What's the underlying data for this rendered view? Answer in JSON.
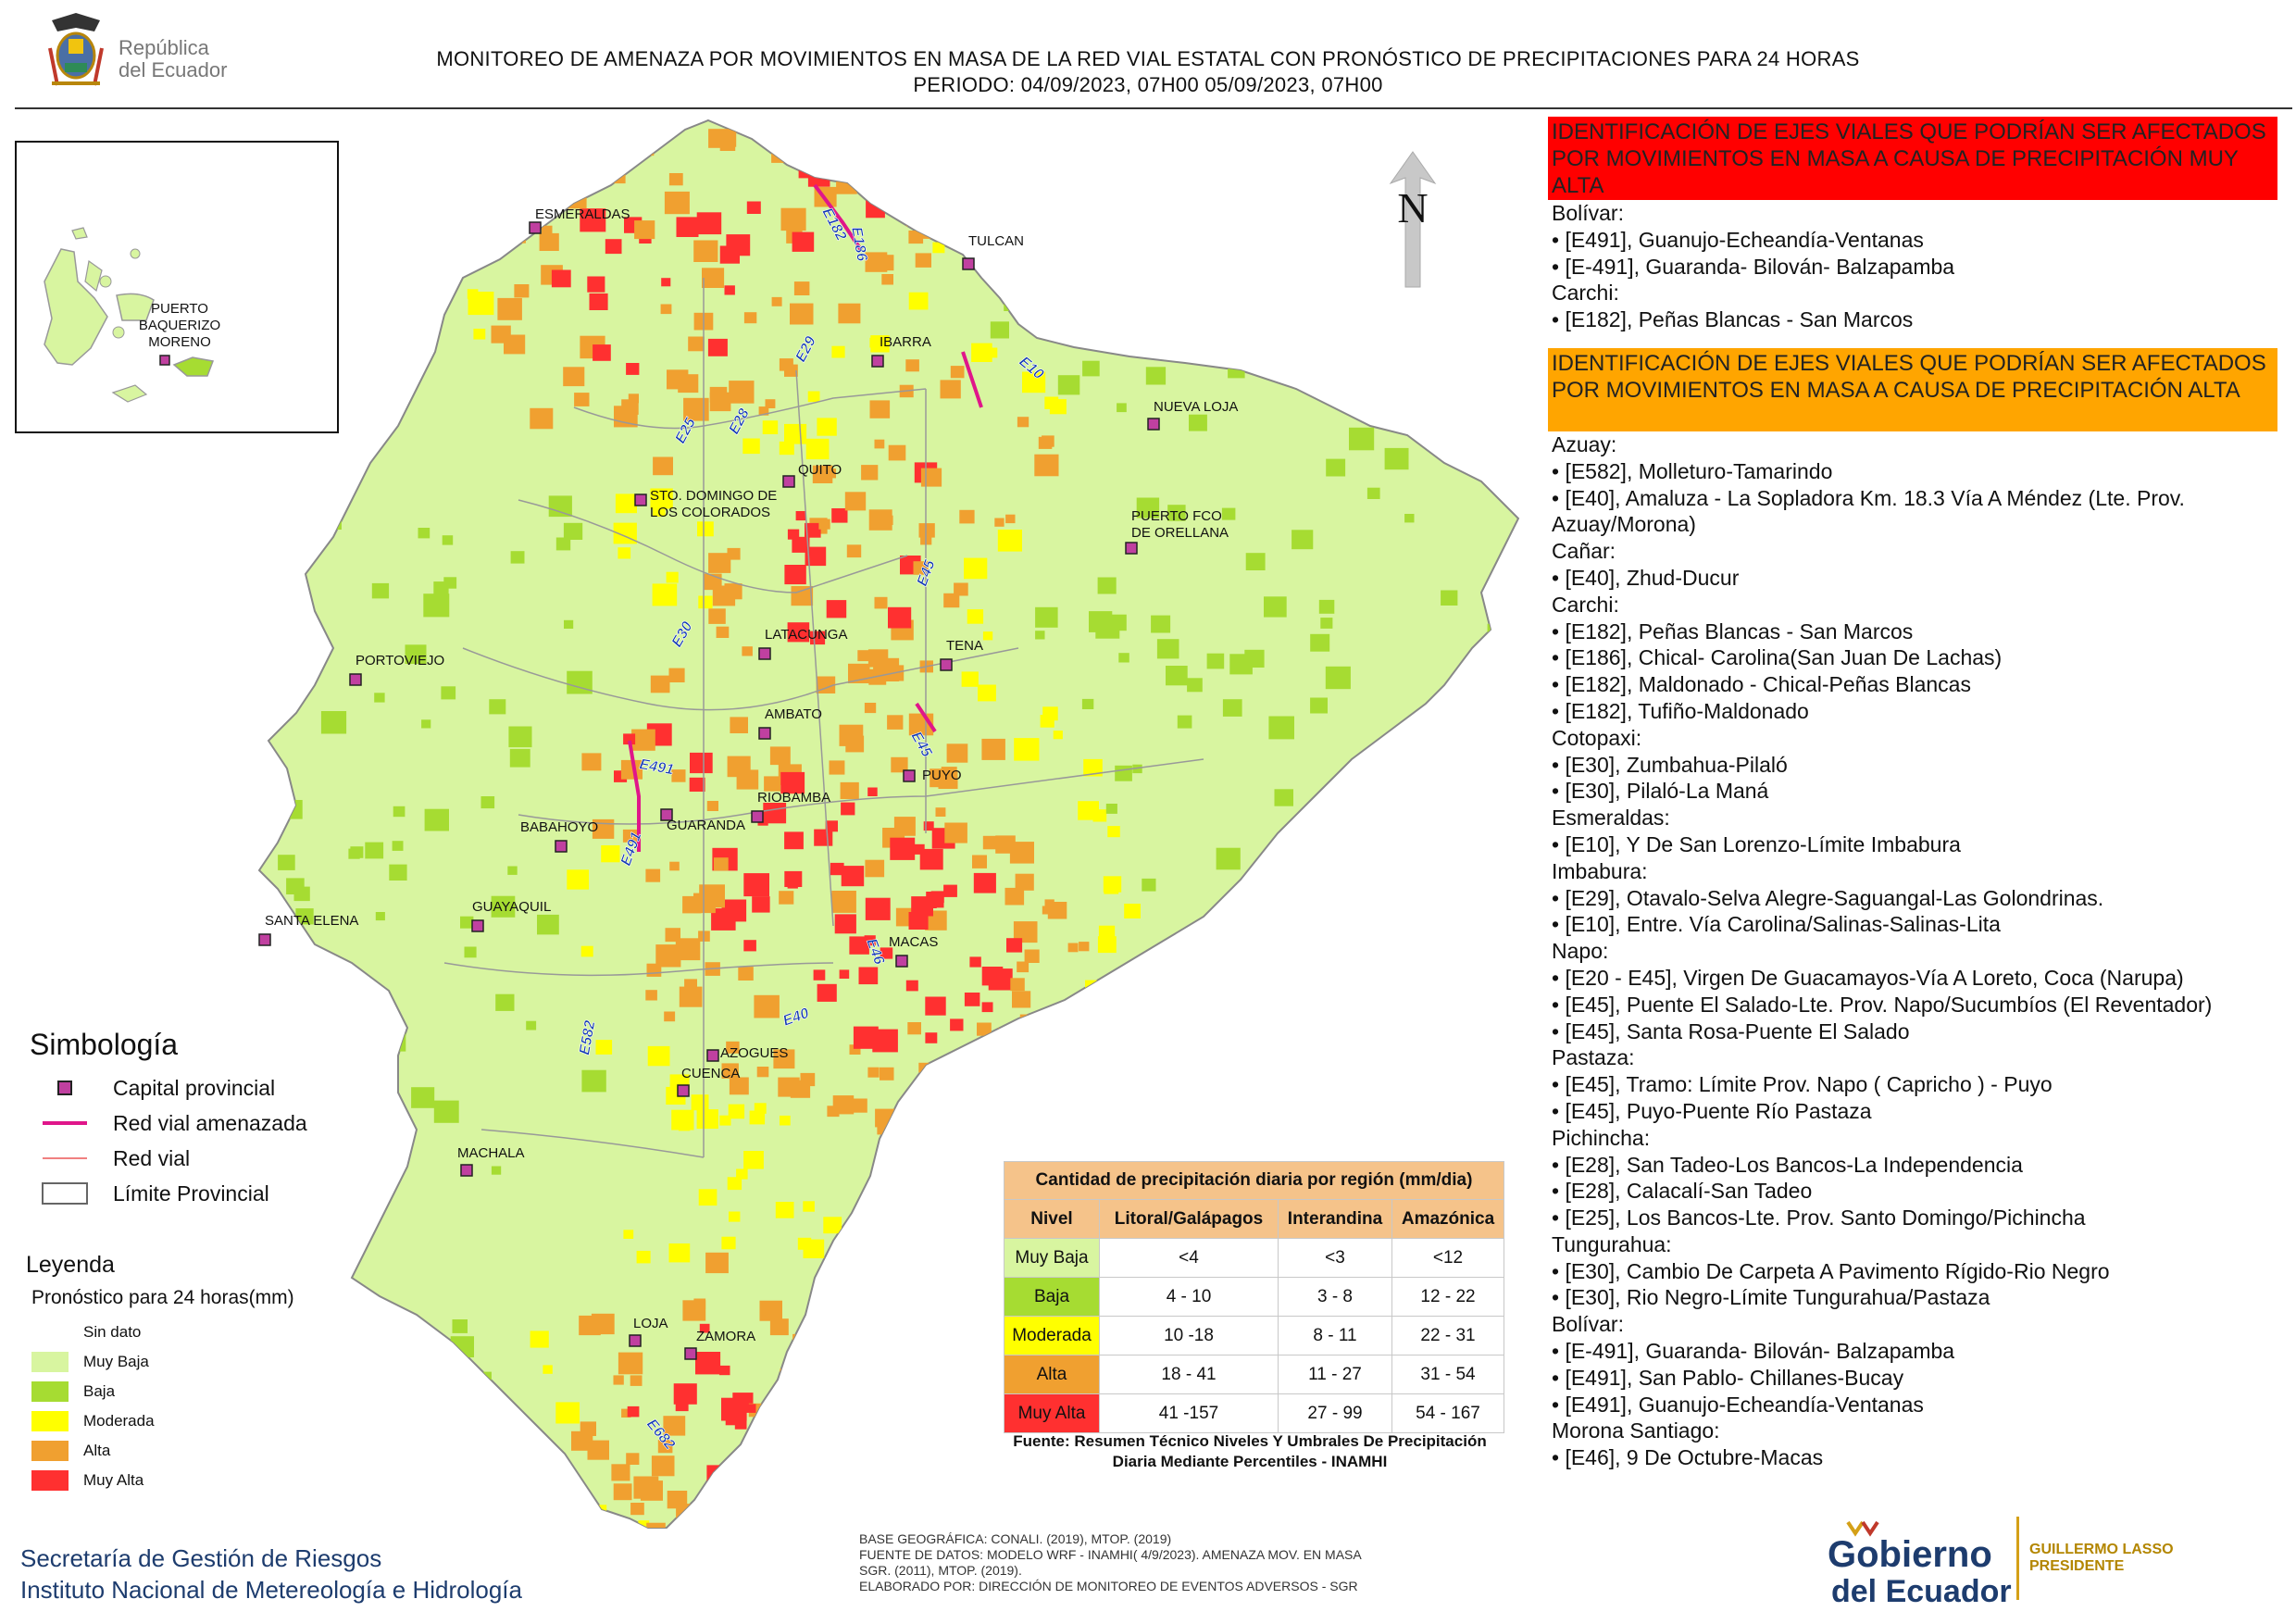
{
  "header": {
    "republic": [
      "República",
      "del Ecuador"
    ],
    "title_line1": "MONITOREO DE AMENAZA POR MOVIMIENTOS EN MASA DE LA RED VIAL  ESTATAL  CON PRONÓSTICO  DE  PRECIPITACIONES PARA 24 HORAS",
    "title_line2": "PERIODO: 04/09/2023, 07H00 05/09/2023, 07H00"
  },
  "north_label": "N",
  "colors": {
    "muy_baja": "#d8f5a0",
    "baja": "#a6dc32",
    "moderada": "#ffff00",
    "alta": "#f0a030",
    "muy_alta": "#ff3030",
    "road_threat": "#e0168a",
    "capital_fill": "#c040a0"
  },
  "inset": {
    "label": [
      "PUERTO",
      "BAQUERIZO",
      "MORENO"
    ]
  },
  "cities": [
    {
      "name": "ESMERALDAS",
      "icon": "capital-marker"
    },
    {
      "name": "TULCAN",
      "icon": "capital-marker"
    },
    {
      "name": "IBARRA",
      "icon": "capital-marker"
    },
    {
      "name": "NUEVA LOJA",
      "icon": "capital-marker"
    },
    {
      "name": "QUITO",
      "icon": "capital-marker"
    },
    {
      "name": "STO. DOMINGO DE",
      "name2": "LOS COLORADOS",
      "icon": "capital-marker"
    },
    {
      "name": "PUERTO FCO",
      "name2": "DE ORELLANA",
      "icon": "capital-marker"
    },
    {
      "name": "PORTOVIEJO",
      "icon": "capital-marker"
    },
    {
      "name": "LATACUNGA",
      "icon": "capital-marker"
    },
    {
      "name": "TENA",
      "icon": "capital-marker"
    },
    {
      "name": "AMBATO",
      "icon": "capital-marker"
    },
    {
      "name": "PUYO",
      "icon": "capital-marker"
    },
    {
      "name": "GUARANDA",
      "icon": "capital-marker"
    },
    {
      "name": "RIOBAMBA",
      "icon": "capital-marker"
    },
    {
      "name": "BABAHOYO",
      "icon": "capital-marker"
    },
    {
      "name": "GUAYAQUIL",
      "icon": "capital-marker"
    },
    {
      "name": "SANTA ELENA",
      "icon": "capital-marker"
    },
    {
      "name": "MACAS",
      "icon": "capital-marker"
    },
    {
      "name": "AZOGUES",
      "icon": "capital-marker"
    },
    {
      "name": "CUENCA",
      "icon": "capital-marker"
    },
    {
      "name": "MACHALA",
      "icon": "capital-marker"
    },
    {
      "name": "LOJA",
      "icon": "capital-marker"
    },
    {
      "name": "ZAMORA",
      "icon": "capital-marker"
    }
  ],
  "road_labels": [
    "E182",
    "E186",
    "E29",
    "E10",
    "E25",
    "E28",
    "E45",
    "E30",
    "E45",
    "E491",
    "E491",
    "E46",
    "E40",
    "E582",
    "E682"
  ],
  "simbologia": {
    "title": "Simbología",
    "items": [
      {
        "label": "Capital provincial",
        "icon": "capital-marker"
      },
      {
        "label": "Red vial amenazada",
        "icon": "threatened-road-line"
      },
      {
        "label": "Red vial",
        "icon": "road-line"
      },
      {
        "label": "Límite Provincial",
        "icon": "province-boundary-box"
      }
    ]
  },
  "leyenda": {
    "title": "Leyenda",
    "subtitle": "Pronóstico para 24 horas(mm)",
    "items": [
      {
        "label": "Sin dato",
        "color": "#ffffff"
      },
      {
        "label": "Muy Baja",
        "color": "#d8f5a0"
      },
      {
        "label": "Baja",
        "color": "#a6dc32"
      },
      {
        "label": "Moderada",
        "color": "#ffff00"
      },
      {
        "label": "Alta",
        "color": "#f0a030"
      },
      {
        "label": "Muy Alta",
        "color": "#ff3030"
      }
    ]
  },
  "precip_table": {
    "caption": "Cantidad de precipitación diaria por región (mm/dia)",
    "headers": [
      "Nivel",
      "Litoral/Galápagos",
      "Interandina",
      "Amazónica"
    ],
    "rows": [
      {
        "nivel": "Muy Baja",
        "color": "#d8f5a0",
        "values": [
          "<4",
          "<3",
          "<12"
        ]
      },
      {
        "nivel": "Baja",
        "color": "#a6dc32",
        "values": [
          "4 - 10",
          "3 - 8",
          "12 - 22"
        ]
      },
      {
        "nivel": "Moderada",
        "color": "#ffff00",
        "values": [
          "10 -18",
          "8 - 11",
          "22 - 31"
        ]
      },
      {
        "nivel": "Alta",
        "color": "#f0a030",
        "values": [
          "18 - 41",
          "11 - 27",
          "31 - 54"
        ]
      },
      {
        "nivel": "Muy Alta",
        "color": "#ff3030",
        "values": [
          "41 -157",
          "27 - 99",
          "54 - 167"
        ]
      }
    ],
    "source": "Fuente: Resumen Técnico Niveles Y Umbrales De Precipitación Diaria Mediante Percentiles - INAMHI"
  },
  "panel": {
    "muy_alta_header": "IDENTIFICACIÓN DE EJES VIALES QUE PODRÍAN SER AFECTADOS POR MOVIMIENTOS EN MASA A CAUSA DE PRECIPITACIÓN MUY ALTA",
    "muy_alta_items": [
      "Bolívar:",
      "• [E491], Guanujo-Echeandía-Ventanas",
      "• [E-491], Guaranda- Bilován- Balzapamba",
      "Carchi:",
      "• [E182], Peñas Blancas - San Marcos"
    ],
    "alta_header": "IDENTIFICACIÓN DE EJES VIALES QUE PODRÍAN SER AFECTADOS POR MOVIMIENTOS EN MASA A CAUSA DE PRECIPITACIÓN  ALTA",
    "alta_items": [
      "Azuay:",
      "• [E582], Molleturo-Tamarindo",
      "• [E40], Amaluza - La Sopladora Km. 18.3 Vía A Méndez (Lte. Prov. Azuay/Morona)",
      "Cañar:",
      "• [E40], Zhud-Ducur",
      "Carchi:",
      "• [E182], Peñas Blancas - San Marcos",
      "• [E186], Chical- Carolina(San Juan De Lachas)",
      "• [E182], Maldonado - Chical-Peñas Blancas",
      "• [E182], Tufiño-Maldonado",
      "Cotopaxi:",
      "• [E30], Zumbahua-Pilaló",
      "• [E30], Pilaló-La Maná",
      "Esmeraldas:",
      "• [E10], Y De San Lorenzo-Límite Imbabura",
      "Imbabura:",
      "• [E29], Otavalo-Selva Alegre-Saguangal-Las Golondrinas.",
      "• [E10], Entre. Vía Carolina/Salinas-Salinas-Lita",
      "Napo:",
      "• [E20 - E45], Virgen De Guacamayos-Vía A Loreto, Coca (Narupa)",
      "• [E45], Puente El Salado-Lte. Prov. Napo/Sucumbíos (El Reventador)",
      "• [E45], Santa Rosa-Puente El Salado",
      "Pastaza:",
      "• [E45], Tramo: Límite Prov. Napo ( Capricho ) - Puyo",
      "• [E45], Puyo-Puente Río Pastaza",
      "Pichincha:",
      "• [E28], San Tadeo-Los Bancos-La Independencia",
      "• [E28], Calacalí-San Tadeo",
      "• [E25], Los Bancos-Lte. Prov. Santo Domingo/Pichincha",
      "Tungurahua:",
      "• [E30], Cambio De Carpeta A Pavimento Rígido-Rio Negro",
      "• [E30], Rio Negro-Límite Tungurahua/Pastaza",
      "Bolívar:",
      "• [E-491], Guaranda- Bilován- Balzapamba",
      "• [E491], San Pablo- Chillanes-Bucay",
      "• [E491], Guanujo-Echeandía-Ventanas",
      "Morona Santiago:",
      "• [E46], 9 De Octubre-Macas"
    ]
  },
  "footer": {
    "org_line1": "Secretaría de Gestión de Riesgos",
    "org_line2": "Instituto Nacional de Metereología e Hidrología",
    "source_lines": [
      "BASE GEOGRÁFICA: CONALI. (2019), MTOP. (2019)",
      "FUENTE DE DATOS: MODELO WRF - INAMHI( 4/9/2023).  AMENAZA MOV. EN MASA",
      "SGR. (2011), MTOP. (2019).",
      "ELABORADO POR: DIRECCIÓN DE MONITOREO DE EVENTOS ADVERSOS - SGR"
    ],
    "gobierno": [
      "Gobierno",
      "del Ecuador"
    ],
    "president": [
      "GUILLERMO LASSO",
      "PRESIDENTE"
    ]
  }
}
